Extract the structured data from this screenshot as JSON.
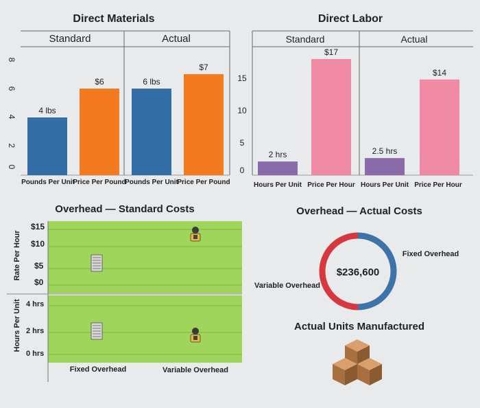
{
  "direct_materials": {
    "title": "Direct Materials",
    "standard_label": "Standard",
    "actual_label": "Actual",
    "y_ticks": [
      "8",
      "6",
      "4",
      "2",
      "0"
    ],
    "categories": [
      "Pounds Per Unit",
      "Price Per Pound",
      "Pounds Per Unit",
      "Price Per Pound"
    ]
  },
  "direct_labor": {
    "title": "Direct Labor",
    "standard_label": "Standard",
    "actual_label": "Actual",
    "y_ticks": [
      "15",
      "10",
      "5",
      "0"
    ],
    "categories": [
      "Hours Per Unit",
      "Price Per Hour",
      "Hours Per Unit",
      "Price Per Hour"
    ]
  },
  "overhead_standard": {
    "title": "Overhead — Standard Costs",
    "y_label_rate": "Rate Per Hour",
    "y_label_hours": "Hours Per Unit",
    "rate_ticks": [
      "$15",
      "$10",
      "$5",
      "$0"
    ],
    "hours_ticks": [
      "4 hrs",
      "2 hrs",
      "0 hrs"
    ],
    "categories": [
      "Fixed Overhead",
      "Variable Overhead"
    ]
  },
  "overhead_actual": {
    "title": "Overhead — Actual Costs",
    "total": "$236,600",
    "fixed_label": "Fixed Overhead",
    "variable_label": "Variable Overhead"
  },
  "units": {
    "title": "Actual Units Manufactured"
  },
  "colors": {
    "standard_blue": "#336ea6",
    "standard_orange": "#f47a20",
    "labor_purple": "#8a6aa8",
    "labor_pink": "#f08aa4",
    "overhead_green": "#9fd55a",
    "donut_red": "#d7373f",
    "donut_blue": "#3d73a8"
  },
  "chart_data": [
    {
      "type": "bar",
      "title": "Direct Materials",
      "categories": [
        "Pounds Per Unit",
        "Price Per Pound",
        "Pounds Per Unit",
        "Price Per Pound"
      ],
      "groups": [
        "Standard",
        "Standard",
        "Actual",
        "Actual"
      ],
      "values": [
        4,
        6,
        6,
        7
      ],
      "labels": [
        "4 lbs",
        "$6",
        "6 lbs",
        "$7"
      ],
      "ylim": [
        0,
        8
      ]
    },
    {
      "type": "bar",
      "title": "Direct Labor",
      "categories": [
        "Hours Per Unit",
        "Price Per Hour",
        "Hours Per Unit",
        "Price Per Hour"
      ],
      "groups": [
        "Standard",
        "Standard",
        "Actual",
        "Actual"
      ],
      "values": [
        2,
        17,
        2.5,
        14
      ],
      "labels": [
        "2 hrs",
        "$17",
        "2.5 hrs",
        "$14"
      ],
      "ylim": [
        0,
        18
      ]
    },
    {
      "type": "pie",
      "title": "Overhead — Actual Costs",
      "center_label": "$236,600",
      "slices": [
        {
          "name": "Variable Overhead",
          "value": 0.5
        },
        {
          "name": "Fixed Overhead",
          "value": 0.5
        }
      ]
    }
  ]
}
